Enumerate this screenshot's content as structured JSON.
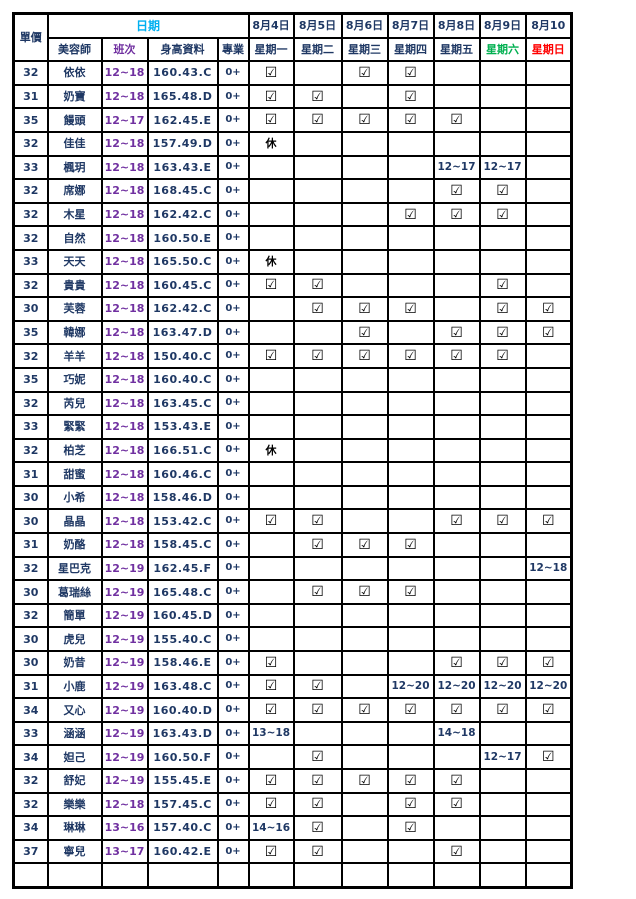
{
  "header": {
    "price_label": "單價",
    "date_label": "日期",
    "col_labels": [
      "美容師",
      "班次",
      "身高資料",
      "專業"
    ],
    "dates": [
      "8月4日",
      "8月5日",
      "8月6日",
      "8月7日",
      "8月8日",
      "8月9日",
      "8月10"
    ],
    "days": [
      "星期一",
      "星期二",
      "星期三",
      "星期四",
      "星期五",
      "星期六",
      "星期日"
    ],
    "day_colors": [
      "#1F3864",
      "#1F3864",
      "#1F3864",
      "#1F3864",
      "#1F3864",
      "#00B050",
      "#FF0000"
    ]
  },
  "symbols": {
    "checked": "☑",
    "rest": "休"
  },
  "colors": {
    "navy": "#1F3864",
    "purple": "#7030A0",
    "cyan": "#00B0F0",
    "green": "#00B050",
    "red": "#FF0000",
    "grid": "#000000",
    "background": "#FFFFFF"
  },
  "rows": [
    {
      "price": "32",
      "name": "依依",
      "shift": "12~18",
      "height": "160.43.C",
      "pro": "0+",
      "schedule": [
        "☑",
        "",
        "☑",
        "☑",
        "",
        "",
        ""
      ]
    },
    {
      "price": "31",
      "name": "奶寶",
      "shift": "12~18",
      "height": "165.48.D",
      "pro": "0+",
      "schedule": [
        "☑",
        "☑",
        "",
        "☑",
        "",
        "",
        ""
      ]
    },
    {
      "price": "35",
      "name": "饅頭",
      "shift": "12~17",
      "height": "162.45.E",
      "pro": "0+",
      "schedule": [
        "☑",
        "☑",
        "☑",
        "☑",
        "☑",
        "",
        ""
      ]
    },
    {
      "price": "32",
      "name": "佳佳",
      "shift": "12~18",
      "height": "157.49.D",
      "pro": "0+",
      "schedule": [
        "休",
        "",
        "",
        "",
        "",
        "",
        ""
      ]
    },
    {
      "price": "33",
      "name": "楓玥",
      "shift": "12~18",
      "height": "163.43.E",
      "pro": "0+",
      "schedule": [
        "",
        "",
        "",
        "",
        "12~17",
        "12~17",
        ""
      ]
    },
    {
      "price": "32",
      "name": "席娜",
      "shift": "12~18",
      "height": "168.45.C",
      "pro": "0+",
      "schedule": [
        "",
        "",
        "",
        "",
        "☑",
        "☑",
        ""
      ]
    },
    {
      "price": "32",
      "name": "木星",
      "shift": "12~18",
      "height": "162.42.C",
      "pro": "0+",
      "schedule": [
        "",
        "",
        "",
        "☑",
        "☑",
        "☑",
        ""
      ]
    },
    {
      "price": "32",
      "name": "自然",
      "shift": "12~18",
      "height": "160.50.E",
      "pro": "0+",
      "schedule": [
        "",
        "",
        "",
        "",
        "",
        "",
        ""
      ]
    },
    {
      "price": "33",
      "name": "天天",
      "shift": "12~18",
      "height": "165.50.C",
      "pro": "0+",
      "schedule": [
        "休",
        "",
        "",
        "",
        "",
        "",
        ""
      ]
    },
    {
      "price": "32",
      "name": "貴貴",
      "shift": "12~18",
      "height": "160.45.C",
      "pro": "0+",
      "schedule": [
        "☑",
        "☑",
        "",
        "",
        "",
        "☑",
        ""
      ]
    },
    {
      "price": "30",
      "name": "芙蓉",
      "shift": "12~18",
      "height": "162.42.C",
      "pro": "0+",
      "schedule": [
        "",
        "☑",
        "☑",
        "☑",
        "",
        "☑",
        "☑"
      ]
    },
    {
      "price": "35",
      "name": "韓娜",
      "shift": "12~18",
      "height": "163.47.D",
      "pro": "0+",
      "schedule": [
        "",
        "",
        "☑",
        "",
        "☑",
        "☑",
        "☑"
      ]
    },
    {
      "price": "32",
      "name": "羊羊",
      "shift": "12~18",
      "height": "150.40.C",
      "pro": "0+",
      "schedule": [
        "☑",
        "☑",
        "☑",
        "☑",
        "☑",
        "☑",
        ""
      ]
    },
    {
      "price": "35",
      "name": "巧妮",
      "shift": "12~18",
      "height": "160.40.C",
      "pro": "0+",
      "schedule": [
        "",
        "",
        "",
        "",
        "",
        "",
        ""
      ]
    },
    {
      "price": "32",
      "name": "芮兒",
      "shift": "12~18",
      "height": "163.45.C",
      "pro": "0+",
      "schedule": [
        "",
        "",
        "",
        "",
        "",
        "",
        ""
      ]
    },
    {
      "price": "33",
      "name": "緊緊",
      "shift": "12~18",
      "height": "153.43.E",
      "pro": "0+",
      "schedule": [
        "",
        "",
        "",
        "",
        "",
        "",
        ""
      ]
    },
    {
      "price": "32",
      "name": "柏芝",
      "shift": "12~18",
      "height": "166.51.C",
      "pro": "0+",
      "schedule": [
        "休",
        "",
        "",
        "",
        "",
        "",
        ""
      ]
    },
    {
      "price": "31",
      "name": "甜蜜",
      "shift": "12~18",
      "height": "160.46.C",
      "pro": "0+",
      "schedule": [
        "",
        "",
        "",
        "",
        "",
        "",
        ""
      ]
    },
    {
      "price": "30",
      "name": "小希",
      "shift": "12~18",
      "height": "158.46.D",
      "pro": "0+",
      "schedule": [
        "",
        "",
        "",
        "",
        "",
        "",
        ""
      ]
    },
    {
      "price": "30",
      "name": "晶晶",
      "shift": "12~18",
      "height": "153.42.C",
      "pro": "0+",
      "schedule": [
        "☑",
        "☑",
        "",
        "",
        "☑",
        "☑",
        "☑"
      ]
    },
    {
      "price": "31",
      "name": "奶酪",
      "shift": "12~18",
      "height": "158.45.C",
      "pro": "0+",
      "schedule": [
        "",
        "☑",
        "☑",
        "☑",
        "",
        "",
        ""
      ]
    },
    {
      "price": "32",
      "name": "星巴克",
      "shift": "12~19",
      "height": "162.45.F",
      "pro": "0+",
      "schedule": [
        "",
        "",
        "",
        "",
        "",
        "",
        "12~18"
      ]
    },
    {
      "price": "30",
      "name": "葛瑞絲",
      "shift": "12~19",
      "height": "165.48.C",
      "pro": "0+",
      "schedule": [
        "",
        "☑",
        "☑",
        "☑",
        "",
        "",
        ""
      ]
    },
    {
      "price": "32",
      "name": "簡單",
      "shift": "12~19",
      "height": "160.45.D",
      "pro": "0+",
      "schedule": [
        "",
        "",
        "",
        "",
        "",
        "",
        ""
      ]
    },
    {
      "price": "30",
      "name": "虎兒",
      "shift": "12~19",
      "height": "155.40.C",
      "pro": "0+",
      "schedule": [
        "",
        "",
        "",
        "",
        "",
        "",
        ""
      ]
    },
    {
      "price": "30",
      "name": "奶昔",
      "shift": "12~19",
      "height": "158.46.E",
      "pro": "0+",
      "schedule": [
        "☑",
        "",
        "",
        "",
        "☑",
        "☑",
        "☑"
      ]
    },
    {
      "price": "31",
      "name": "小鹿",
      "shift": "12~19",
      "height": "163.48.C",
      "pro": "0+",
      "schedule": [
        "☑",
        "☑",
        "",
        "12~20",
        "12~20",
        "12~20",
        "12~20"
      ]
    },
    {
      "price": "34",
      "name": "又心",
      "shift": "12~19",
      "height": "160.40.D",
      "pro": "0+",
      "schedule": [
        "☑",
        "☑",
        "☑",
        "☑",
        "☑",
        "☑",
        "☑"
      ]
    },
    {
      "price": "33",
      "name": "涵涵",
      "shift": "12~19",
      "height": "163.43.D",
      "pro": "0+",
      "schedule": [
        "13~18",
        "",
        "",
        "",
        "14~18",
        "",
        ""
      ]
    },
    {
      "price": "34",
      "name": "妲己",
      "shift": "12~19",
      "height": "160.50.F",
      "pro": "0+",
      "schedule": [
        "",
        "☑",
        "",
        "",
        "",
        "12~17",
        "☑"
      ]
    },
    {
      "price": "32",
      "name": "舒妃",
      "shift": "12~19",
      "height": "155.45.E",
      "pro": "0+",
      "schedule": [
        "☑",
        "☑",
        "☑",
        "☑",
        "☑",
        "",
        ""
      ]
    },
    {
      "price": "32",
      "name": "樂樂",
      "shift": "12~18",
      "height": "157.45.C",
      "pro": "0+",
      "schedule": [
        "☑",
        "☑",
        "",
        "☑",
        "☑",
        "",
        ""
      ]
    },
    {
      "price": "34",
      "name": "琳琳",
      "shift": "13~16",
      "height": "157.40.C",
      "pro": "0+",
      "schedule": [
        "14~16",
        "☑",
        "",
        "☑",
        "",
        "",
        ""
      ]
    },
    {
      "price": "37",
      "name": "寧兒",
      "shift": "13~17",
      "height": "160.42.E",
      "pro": "0+",
      "schedule": [
        "☑",
        "☑",
        "",
        "",
        "☑",
        "",
        ""
      ]
    },
    {
      "price": "",
      "name": "",
      "shift": "",
      "height": "",
      "pro": "",
      "schedule": [
        "",
        "",
        "",
        "",
        "",
        "",
        ""
      ]
    }
  ]
}
